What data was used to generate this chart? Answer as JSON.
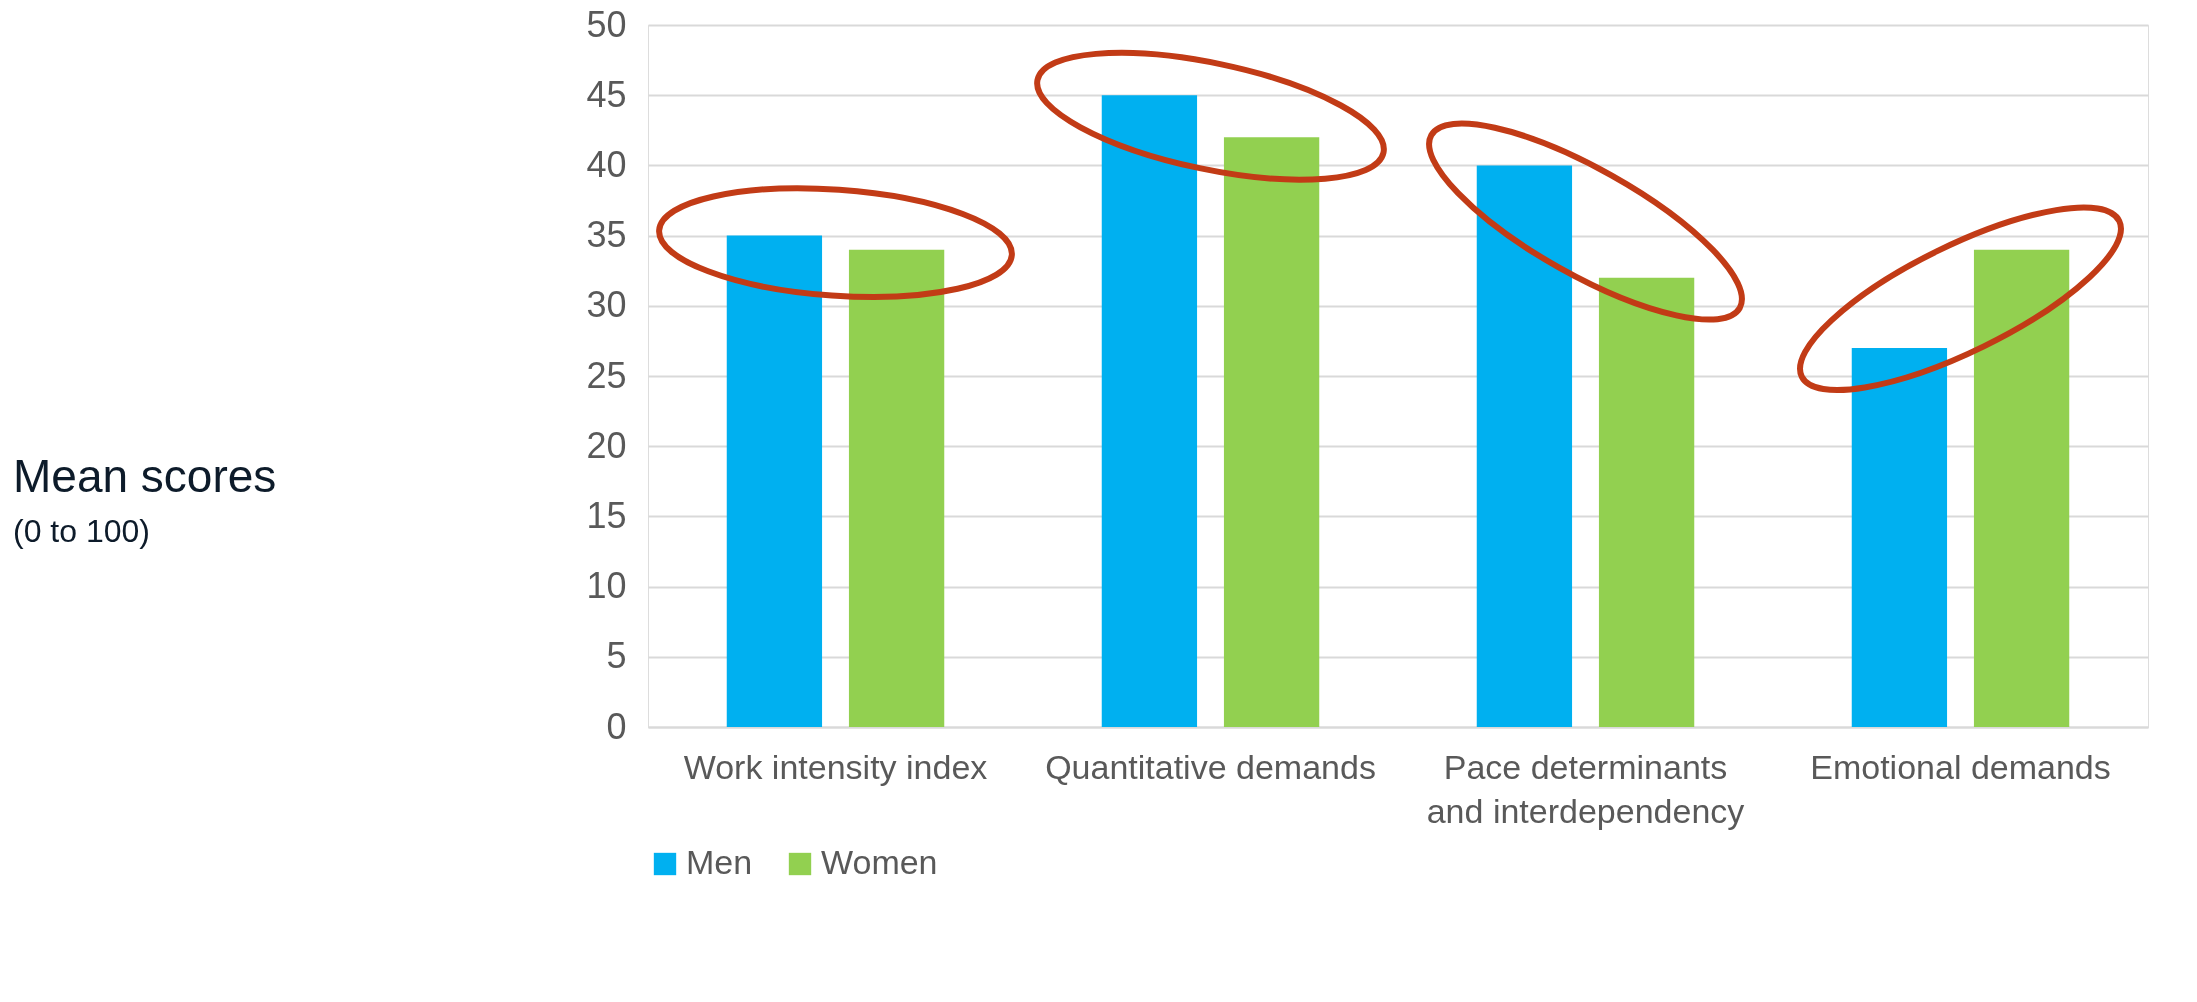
{
  "chart_data": {
    "type": "bar",
    "annotations": [
      "Mean scores",
      "(0 to 100)"
    ],
    "categories": [
      "Work intensity index",
      "Quantitative demands",
      "Pace determinants and interdependency",
      "Emotional demands"
    ],
    "series": [
      {
        "name": "Men",
        "color": "#00b0f0",
        "values": [
          35,
          45,
          40,
          27
        ]
      },
      {
        "name": "Women",
        "color": "#92d050",
        "values": [
          34,
          42,
          32,
          34
        ]
      }
    ],
    "ylim": [
      0,
      50
    ],
    "yticks": [
      0,
      5,
      10,
      15,
      20,
      25,
      30,
      35,
      40,
      45,
      50
    ],
    "grid": "y",
    "legend": "bottom"
  }
}
